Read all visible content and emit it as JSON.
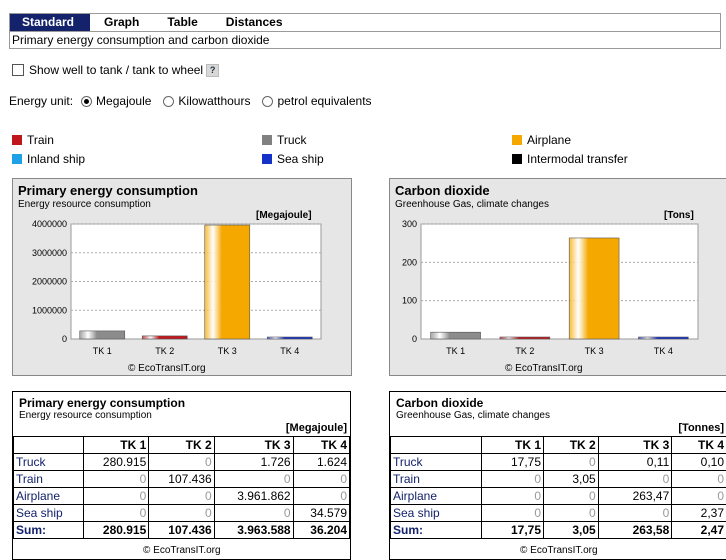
{
  "tabs": [
    "Standard",
    "Graph",
    "Table",
    "Distances"
  ],
  "subtitle": "Primary energy consumption and carbon dioxide",
  "checkbox_label": "Show well to tank / tank to wheel",
  "help_glyph": "?",
  "energy_unit": {
    "label": "Energy unit:",
    "options": [
      "Megajoule",
      "Kilowatthours",
      "petrol equivalents"
    ],
    "selected": "Megajoule"
  },
  "legend": [
    {
      "label": "Train",
      "color": "#c0171c"
    },
    {
      "label": "Truck",
      "color": "#808080"
    },
    {
      "label": "Airplane",
      "color": "#f5a800"
    },
    {
      "label": "Inland ship",
      "color": "#1ea1e6"
    },
    {
      "label": "Sea ship",
      "color": "#1432c8"
    },
    {
      "label": "Intermodal transfer",
      "color": "#000000"
    }
  ],
  "copyright": "© EcoTransIT.org",
  "chart_data": [
    {
      "type": "bar",
      "title": "Primary energy consumption",
      "subtitle": "Energy resource consumption",
      "unit": "[Megajoule]",
      "categories": [
        "TK 1",
        "TK 2",
        "TK 3",
        "TK 4"
      ],
      "values": [
        280915,
        107436,
        3963588,
        36204
      ],
      "colors": [
        "#8c8c8c",
        "#c0171c",
        "#f5a800",
        "#1432c8"
      ],
      "yticks": [
        "0",
        "1000000",
        "2000000",
        "3000000",
        "4000000"
      ],
      "ylim": [
        0,
        4000000
      ]
    },
    {
      "type": "bar",
      "title": "Carbon dioxide",
      "subtitle": "Greenhouse Gas, climate changes",
      "unit": "[Tons]",
      "categories": [
        "TK 1",
        "TK 2",
        "TK 3",
        "TK 4"
      ],
      "values": [
        17.75,
        3.05,
        263.58,
        2.47
      ],
      "colors": [
        "#8c8c8c",
        "#c0171c",
        "#f5a800",
        "#1432c8"
      ],
      "yticks": [
        "0",
        "100",
        "200",
        "300"
      ],
      "ylim": [
        0,
        300
      ]
    }
  ],
  "tables": [
    {
      "title": "Primary energy consumption",
      "subtitle": "Energy resource consumption",
      "unit": "[Megajoule]",
      "headers": [
        "",
        "TK 1",
        "TK 2",
        "TK 3",
        "TK 4"
      ],
      "rows": [
        [
          "Truck",
          "280.915",
          "0",
          "1.726",
          "1.624"
        ],
        [
          "Train",
          "0",
          "107.436",
          "0",
          "0"
        ],
        [
          "Airplane",
          "0",
          "0",
          "3.961.862",
          "0"
        ],
        [
          "Sea ship",
          "0",
          "0",
          "0",
          "34.579"
        ],
        [
          "Sum:",
          "280.915",
          "107.436",
          "3.963.588",
          "36.204"
        ]
      ]
    },
    {
      "title": "Carbon dioxide",
      "subtitle": "Greenhouse Gas, climate changes",
      "unit": "[Tonnes]",
      "headers": [
        "",
        "TK 1",
        "TK 2",
        "TK 3",
        "TK 4"
      ],
      "rows": [
        [
          "Truck",
          "17,75",
          "0",
          "0,11",
          "0,10"
        ],
        [
          "Train",
          "0",
          "3,05",
          "0",
          "0"
        ],
        [
          "Airplane",
          "0",
          "0",
          "263,47",
          "0"
        ],
        [
          "Sea ship",
          "0",
          "0",
          "0",
          "2,37"
        ],
        [
          "Sum:",
          "17,75",
          "3,05",
          "263,58",
          "2,47"
        ]
      ]
    }
  ]
}
